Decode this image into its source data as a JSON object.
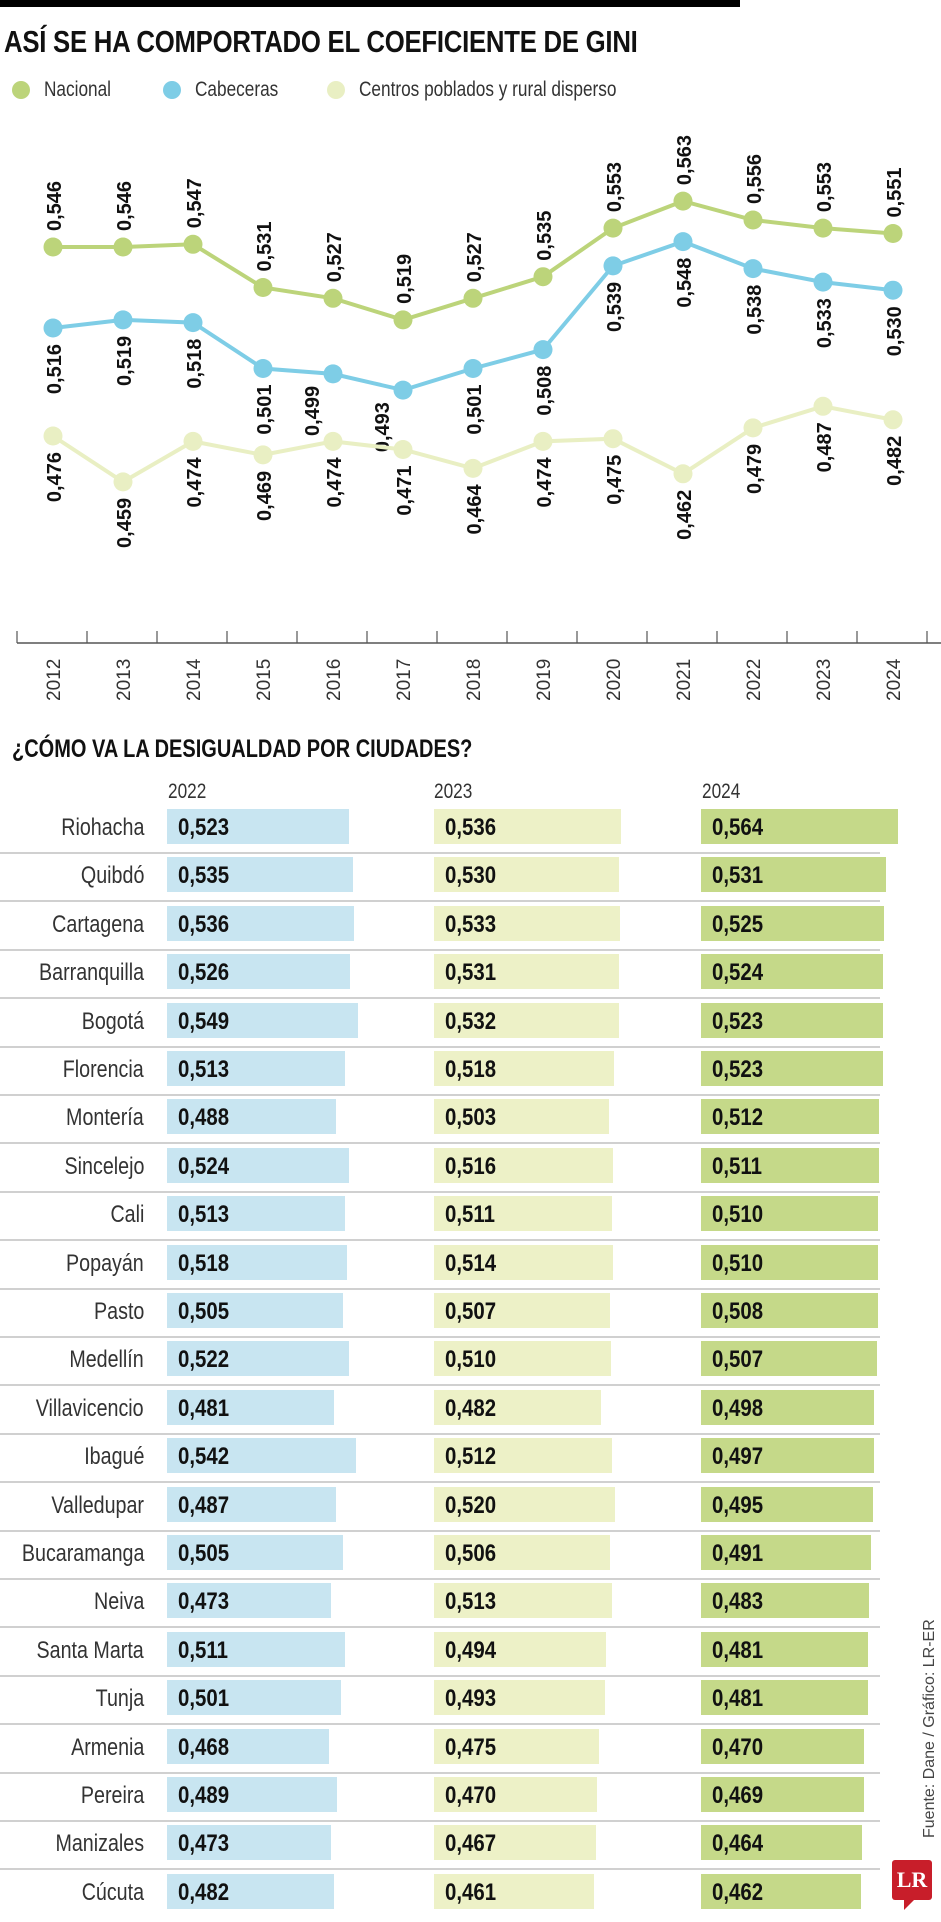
{
  "title": "ASÍ SE HA COMPORTADO EL COEFICIENTE DE GINI",
  "legend": [
    {
      "label": "Nacional",
      "color": "#bcd47a"
    },
    {
      "label": "Cabeceras",
      "color": "#7ecde6"
    },
    {
      "label": "Centros poblados y rural disperso",
      "color": "#e9efc3"
    }
  ],
  "chart_data": [
    {
      "type": "line",
      "title": "ASÍ SE HA COMPORTADO EL COEFICIENTE DE GINI",
      "x": [
        "2012",
        "2013",
        "2014",
        "2015",
        "2016",
        "2017",
        "2018",
        "2019",
        "2020",
        "2021",
        "2022",
        "2023",
        "2024"
      ],
      "series": [
        {
          "name": "Nacional",
          "color": "#bcd47a",
          "labels": "above",
          "values": [
            0.546,
            0.546,
            0.547,
            0.531,
            0.527,
            0.519,
            0.527,
            0.535,
            0.553,
            0.563,
            0.556,
            0.553,
            0.551
          ],
          "value_labels": [
            "0,546",
            "0,546",
            "0,547",
            "0,531",
            "0,527",
            "0,519",
            "0,527",
            "0,535",
            "0,553",
            "0,563",
            "0,556",
            "0,553",
            "0,551"
          ]
        },
        {
          "name": "Cabeceras",
          "color": "#7ecde6",
          "labels": "below",
          "values": [
            0.516,
            0.519,
            0.518,
            0.501,
            0.499,
            0.493,
            0.501,
            0.508,
            0.539,
            0.548,
            0.538,
            0.533,
            0.53
          ],
          "value_labels": [
            "0,516",
            "0,519",
            "0,518",
            "0,501",
            "0,499",
            "0,493",
            "0,501",
            "0,508",
            "0,539",
            "0,548",
            "0,538",
            "0,533",
            "0,530"
          ]
        },
        {
          "name": "Centros poblados y rural disperso",
          "color": "#e9efc3",
          "labels": "below",
          "values": [
            0.476,
            0.459,
            0.474,
            0.469,
            0.474,
            0.471,
            0.464,
            0.474,
            0.475,
            0.462,
            0.479,
            0.487,
            0.482
          ],
          "value_labels": [
            "0,476",
            "0,459",
            "0,474",
            "0,469",
            "0,474",
            "0,471",
            "0,464",
            "0,474",
            "0,475",
            "0,462",
            "0,479",
            "0,487",
            "0,482"
          ]
        }
      ],
      "grid": false
    },
    {
      "type": "bar",
      "title": "¿CÓMO VA LA DESIGUALDAD POR CIUDADES?",
      "years": [
        "2022",
        "2023",
        "2024"
      ],
      "colors": [
        "#c8e5f1",
        "#edf1c7",
        "#c5d989"
      ],
      "rows": [
        {
          "city": "Riohacha",
          "values": [
            "0,523",
            "0,536",
            "0,564"
          ]
        },
        {
          "city": "Quibdó",
          "values": [
            "0,535",
            "0,530",
            "0,531"
          ]
        },
        {
          "city": "Cartagena",
          "values": [
            "0,536",
            "0,533",
            "0,525"
          ]
        },
        {
          "city": "Barranquilla",
          "values": [
            "0,526",
            "0,531",
            "0,524"
          ]
        },
        {
          "city": "Bogotá",
          "values": [
            "0,549",
            "0,532",
            "0,523"
          ]
        },
        {
          "city": "Florencia",
          "values": [
            "0,513",
            "0,518",
            "0,523"
          ]
        },
        {
          "city": "Montería",
          "values": [
            "0,488",
            "0,503",
            "0,512"
          ]
        },
        {
          "city": "Sincelejo",
          "values": [
            "0,524",
            "0,516",
            "0,511"
          ]
        },
        {
          "city": "Cali",
          "values": [
            "0,513",
            "0,511",
            "0,510"
          ]
        },
        {
          "city": "Popayán",
          "values": [
            "0,518",
            "0,514",
            "0,510"
          ]
        },
        {
          "city": "Pasto",
          "values": [
            "0,505",
            "0,507",
            "0,508"
          ]
        },
        {
          "city": "Medellín",
          "values": [
            "0,522",
            "0,510",
            "0,507"
          ]
        },
        {
          "city": "Villavicencio",
          "values": [
            "0,481",
            "0,482",
            "0,498"
          ]
        },
        {
          "city": "Ibagué",
          "values": [
            "0,542",
            "0,512",
            "0,497"
          ]
        },
        {
          "city": "Valledupar",
          "values": [
            "0,487",
            "0,520",
            "0,495"
          ]
        },
        {
          "city": "Bucaramanga",
          "values": [
            "0,505",
            "0,506",
            "0,491"
          ]
        },
        {
          "city": "Neiva",
          "values": [
            "0,473",
            "0,513",
            "0,483"
          ]
        },
        {
          "city": "Santa Marta",
          "values": [
            "0,511",
            "0,494",
            "0,481"
          ]
        },
        {
          "city": "Tunja",
          "values": [
            "0,501",
            "0,493",
            "0,481"
          ]
        },
        {
          "city": "Armenia",
          "values": [
            "0,468",
            "0,475",
            "0,470"
          ]
        },
        {
          "city": "Pereira",
          "values": [
            "0,489",
            "0,470",
            "0,469"
          ]
        },
        {
          "city": "Manizales",
          "values": [
            "0,473",
            "0,467",
            "0,464"
          ]
        },
        {
          "city": "Cúcuta",
          "values": [
            "0,482",
            "0,461",
            "0,462"
          ]
        }
      ]
    }
  ],
  "source": "Fuente: Dane / Gráfico: LR-ER",
  "logo": "LR"
}
